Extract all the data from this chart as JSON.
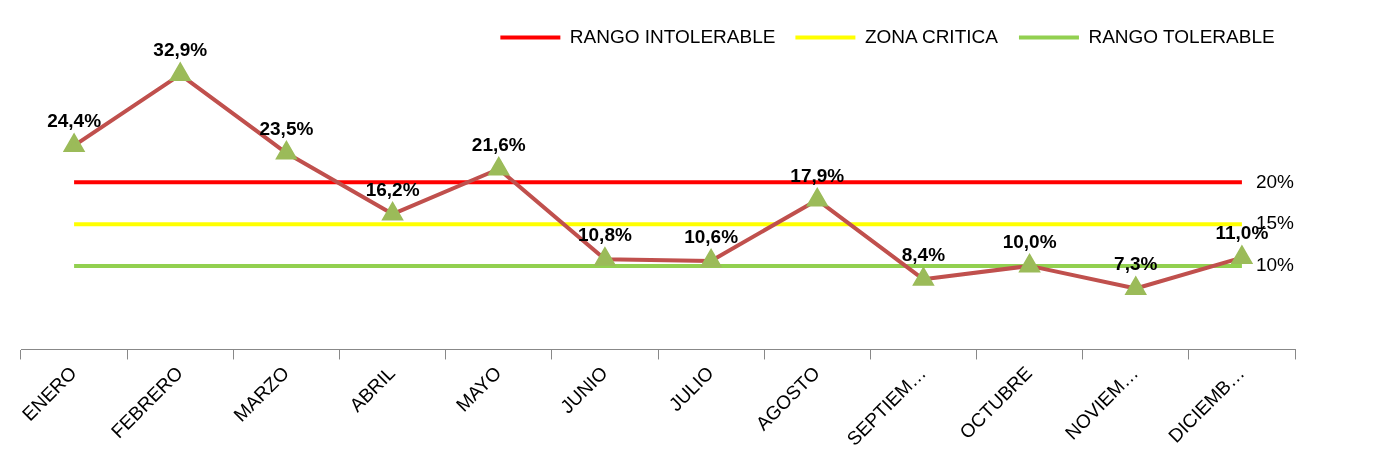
{
  "chart_data": {
    "type": "line",
    "categories": [
      "ENERO",
      "FEBRERO",
      "MARZO",
      "ABRIL",
      "MAYO",
      "JUNIO",
      "JULIO",
      "AGOSTO",
      "SEPTIEM…",
      "OCTUBRE",
      "NOVIEM…",
      "DICIEMB…"
    ],
    "series": [
      {
        "color": "#c0504d",
        "marker": "triangle",
        "values": [
          24.4,
          32.9,
          23.5,
          16.2,
          21.6,
          10.8,
          10.6,
          17.9,
          8.4,
          10.0,
          7.3,
          11.0
        ],
        "value_labels": [
          "24,4%",
          "32,9%",
          "23,5%",
          "16,2%",
          "21,6%",
          "10,8%",
          "10,6%",
          "17,9%",
          "8,4%",
          "10,0%",
          "7,3%",
          "11,0%"
        ]
      },
      {
        "name": "RANGO INTOLERABLE",
        "color": "#ff0000",
        "marker": "none",
        "values": [
          20,
          20,
          20,
          20,
          20,
          20,
          20,
          20,
          20,
          20,
          20,
          20
        ],
        "value_labels": [
          null,
          null,
          null,
          null,
          null,
          null,
          null,
          null,
          null,
          null,
          null,
          "20%"
        ]
      },
      {
        "name": "ZONA CRITICA",
        "color": "#ffff00",
        "marker": "none",
        "values": [
          15,
          15,
          15,
          15,
          15,
          15,
          15,
          15,
          15,
          15,
          15,
          15
        ],
        "value_labels": [
          null,
          null,
          null,
          null,
          null,
          null,
          null,
          null,
          null,
          null,
          null,
          "15%"
        ]
      },
      {
        "name": "RANGO TOLERABLE",
        "color": "#92d050",
        "marker": "none",
        "values": [
          10,
          10,
          10,
          10,
          10,
          10,
          10,
          10,
          10,
          10,
          10,
          10
        ],
        "value_labels": [
          null,
          null,
          null,
          null,
          null,
          null,
          null,
          null,
          null,
          null,
          null,
          "10%"
        ]
      }
    ],
    "legend": "top right",
    "grid": false,
    "tick_labels": "x"
  }
}
